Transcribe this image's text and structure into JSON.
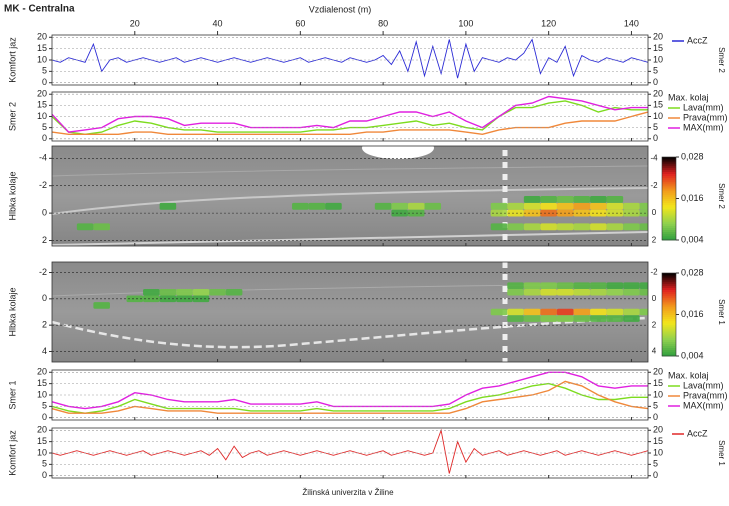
{
  "footer": "Žilinská univerzita v Žiline",
  "chart_data": [
    {
      "type": "line",
      "title": "MK - Centralna",
      "xlabel": "Vzdialenost (m)",
      "xlim": [
        0,
        144
      ],
      "xticks": [
        20,
        40,
        60,
        80,
        100,
        120,
        140
      ],
      "ylabel": "Komfort jaz",
      "side_label": "Smer 2",
      "ylim": [
        -1,
        21
      ],
      "yticks": [
        0,
        5,
        10,
        15,
        20
      ],
      "grid": true,
      "x": [
        0,
        2,
        4,
        6,
        8,
        10,
        12,
        14,
        16,
        18,
        20,
        22,
        24,
        26,
        28,
        30,
        32,
        34,
        36,
        38,
        40,
        42,
        44,
        46,
        48,
        50,
        52,
        54,
        56,
        58,
        60,
        62,
        64,
        66,
        68,
        70,
        72,
        74,
        76,
        78,
        80,
        82,
        84,
        86,
        88,
        90,
        92,
        94,
        96,
        98,
        100,
        102,
        104,
        106,
        108,
        110,
        112,
        114,
        116,
        118,
        120,
        122,
        124,
        126,
        128,
        130,
        132,
        134,
        136,
        138,
        140,
        142,
        144
      ],
      "series": [
        {
          "name": "AccZ",
          "color": "#2b2bd6",
          "values": [
            10,
            9,
            11,
            10,
            9,
            17,
            5,
            10,
            11,
            9,
            10,
            11,
            10,
            9,
            10,
            11,
            9,
            10,
            11,
            10,
            9,
            10,
            11,
            10,
            9,
            10,
            11,
            10,
            9,
            10,
            11,
            9,
            10,
            11,
            10,
            9,
            11,
            10,
            9,
            10,
            12,
            8,
            14,
            5,
            18,
            3,
            16,
            4,
            19,
            2,
            17,
            5,
            11,
            10,
            9,
            11,
            10,
            13,
            19,
            4,
            11,
            9,
            16,
            3,
            12,
            10,
            9,
            11,
            10,
            9,
            11,
            10,
            9
          ]
        }
      ]
    },
    {
      "type": "line",
      "ylabel": "Smer 2",
      "legend_title": "Max. kolaj",
      "ylim": [
        -1,
        21
      ],
      "yticks": [
        0,
        5,
        10,
        15,
        20
      ],
      "grid": true,
      "x": [
        0,
        4,
        8,
        12,
        16,
        20,
        24,
        28,
        32,
        36,
        40,
        44,
        48,
        52,
        56,
        60,
        64,
        68,
        72,
        76,
        80,
        84,
        88,
        92,
        96,
        100,
        104,
        108,
        112,
        116,
        120,
        124,
        128,
        132,
        136,
        140,
        144
      ],
      "series": [
        {
          "name": "Lava(mm)",
          "color": "#7ddc1f",
          "values": [
            10,
            3,
            2,
            3,
            6,
            8,
            7,
            5,
            4,
            4,
            3,
            3,
            3,
            3,
            3,
            3,
            4,
            4,
            5,
            5,
            6,
            7,
            8,
            6,
            7,
            5,
            4,
            10,
            14,
            14,
            16,
            17,
            15,
            12,
            14,
            13,
            13
          ]
        },
        {
          "name": "Prava(mm)",
          "color": "#f0883a",
          "values": [
            3,
            2,
            2,
            2,
            2,
            3,
            3,
            2,
            2,
            2,
            2,
            2,
            2,
            2,
            2,
            2,
            2,
            2,
            2,
            3,
            3,
            4,
            4,
            4,
            4,
            3,
            2,
            4,
            5,
            5,
            5,
            7,
            8,
            8,
            8,
            10,
            12
          ]
        },
        {
          "name": "MAX(mm)",
          "color": "#e020e0",
          "values": [
            11,
            3,
            4,
            5,
            9,
            10,
            10,
            9,
            6,
            7,
            7,
            7,
            5,
            5,
            5,
            5,
            6,
            5,
            8,
            8,
            10,
            12,
            12,
            10,
            12,
            8,
            5,
            10,
            15,
            16,
            19,
            18,
            17,
            15,
            13,
            14,
            14
          ]
        }
      ]
    },
    {
      "type": "heatmap",
      "ylabel": "Hlbka kolaje",
      "side_label": "Smer 2",
      "ylim": [
        -4.9,
        2.4
      ],
      "y_inverted": true,
      "yticks": [
        -4,
        -2,
        0,
        2
      ],
      "grid": true,
      "clim": [
        0.004,
        0.028
      ],
      "cticks": [
        {
          "value": 0.004,
          "label": "0,004"
        },
        {
          "value": 0.016,
          "label": "0,016"
        },
        {
          "value": 0.028,
          "label": "0,028"
        }
      ],
      "colormap": [
        "#2e9e3e",
        "#8fd14f",
        "#f2e61c",
        "#f29a1c",
        "#e02020",
        "#000000"
      ],
      "x": [
        8,
        12,
        28,
        60,
        64,
        68,
        80,
        84,
        88,
        92,
        84,
        88,
        108,
        112,
        116,
        120,
        124,
        128,
        132,
        136,
        140,
        144,
        108,
        112,
        116,
        120,
        124,
        128,
        132,
        136,
        140,
        144,
        108,
        112,
        116,
        120,
        124,
        128,
        132,
        136,
        140,
        144,
        116,
        120,
        124,
        128,
        132,
        136
      ],
      "y": [
        1,
        1,
        -0.5,
        -0.5,
        -0.5,
        -0.5,
        -0.5,
        -0.5,
        -0.5,
        -0.5,
        0,
        0,
        -0.5,
        -0.5,
        -0.5,
        -0.5,
        -0.5,
        -0.5,
        -0.5,
        -0.5,
        -0.5,
        -0.5,
        0,
        0,
        0,
        0,
        0,
        0,
        0,
        0,
        0,
        0,
        1,
        1,
        1,
        1,
        1,
        1,
        1,
        1,
        1,
        1,
        -1,
        -1,
        -1,
        -1,
        -1,
        -1
      ],
      "values": [
        0.006,
        0.007,
        0.005,
        0.006,
        0.006,
        0.005,
        0.006,
        0.008,
        0.01,
        0.007,
        0.005,
        0.006,
        0.008,
        0.01,
        0.012,
        0.014,
        0.016,
        0.018,
        0.016,
        0.012,
        0.01,
        0.008,
        0.01,
        0.013,
        0.016,
        0.02,
        0.018,
        0.016,
        0.014,
        0.012,
        0.01,
        0.008,
        0.006,
        0.008,
        0.01,
        0.012,
        0.011,
        0.01,
        0.012,
        0.01,
        0.008,
        0.007,
        0.005,
        0.006,
        0.007,
        0.006,
        0.005,
        0.006
      ]
    },
    {
      "type": "heatmap",
      "ylabel": "Hlbka kolaje",
      "side_label": "Smer 1",
      "ylim": [
        -2.8,
        4.8
      ],
      "y_inverted": true,
      "yticks": [
        -2,
        0,
        2,
        4
      ],
      "grid": true,
      "clim": [
        0.004,
        0.028
      ],
      "cticks": [
        {
          "value": 0.004,
          "label": "0,004"
        },
        {
          "value": 0.016,
          "label": "0,016"
        },
        {
          "value": 0.028,
          "label": "0,028"
        }
      ],
      "colormap": [
        "#2e9e3e",
        "#8fd14f",
        "#f2e61c",
        "#f29a1c",
        "#e02020",
        "#000000"
      ],
      "x": [
        12,
        24,
        28,
        32,
        36,
        40,
        44,
        20,
        24,
        28,
        32,
        36,
        112,
        116,
        120,
        124,
        128,
        132,
        136,
        140,
        144,
        112,
        116,
        120,
        124,
        128,
        132,
        136,
        140,
        144,
        108,
        112,
        116,
        120,
        124,
        128,
        132,
        136,
        140,
        144,
        112,
        116,
        120,
        124,
        128,
        132,
        136,
        140
      ],
      "y": [
        0.5,
        -0.5,
        -0.5,
        -0.5,
        -0.5,
        -0.5,
        -0.5,
        0,
        0,
        0,
        0,
        0,
        -1,
        -1,
        -1,
        -1,
        -1,
        -1,
        -1,
        -1,
        -1,
        -0.5,
        -0.5,
        -0.5,
        -0.5,
        -0.5,
        -0.5,
        -0.5,
        -0.5,
        -0.5,
        1,
        1,
        1,
        1,
        1,
        1,
        1,
        1,
        1,
        1,
        1.5,
        1.5,
        1.5,
        1.5,
        1.5,
        1.5,
        1.5,
        1.5
      ],
      "values": [
        0.006,
        0.005,
        0.007,
        0.008,
        0.009,
        0.007,
        0.006,
        0.006,
        0.006,
        0.005,
        0.005,
        0.005,
        0.006,
        0.008,
        0.008,
        0.007,
        0.006,
        0.006,
        0.005,
        0.005,
        0.005,
        0.008,
        0.01,
        0.012,
        0.012,
        0.011,
        0.01,
        0.009,
        0.008,
        0.007,
        0.008,
        0.012,
        0.016,
        0.02,
        0.022,
        0.018,
        0.014,
        0.012,
        0.01,
        0.008,
        0.006,
        0.007,
        0.008,
        0.008,
        0.007,
        0.006,
        0.006,
        0.005
      ]
    },
    {
      "type": "line",
      "ylabel": "Smer 1",
      "legend_title": "Max. kolaj",
      "ylim": [
        -1,
        21
      ],
      "yticks": [
        0,
        5,
        10,
        15,
        20
      ],
      "grid": true,
      "x": [
        0,
        4,
        8,
        12,
        16,
        20,
        24,
        28,
        32,
        36,
        40,
        44,
        48,
        52,
        56,
        60,
        64,
        68,
        72,
        76,
        80,
        84,
        88,
        92,
        96,
        100,
        104,
        108,
        112,
        116,
        120,
        124,
        128,
        132,
        136,
        140,
        144
      ],
      "series": [
        {
          "name": "Lava(mm)",
          "color": "#7ddc1f",
          "values": [
            5,
            3,
            2,
            3,
            5,
            8,
            6,
            4,
            4,
            4,
            4,
            4,
            3,
            3,
            3,
            3,
            4,
            3,
            3,
            3,
            3,
            3,
            3,
            3,
            4,
            7,
            9,
            10,
            12,
            14,
            15,
            13,
            10,
            8,
            8,
            9,
            9
          ]
        },
        {
          "name": "Prava(mm)",
          "color": "#f0883a",
          "values": [
            4,
            2,
            2,
            2,
            3,
            5,
            4,
            3,
            3,
            3,
            2,
            2,
            2,
            2,
            2,
            2,
            2,
            2,
            2,
            2,
            2,
            2,
            2,
            2,
            2,
            4,
            7,
            8,
            9,
            10,
            12,
            16,
            14,
            10,
            7,
            5,
            4
          ]
        },
        {
          "name": "MAX(mm)",
          "color": "#e020e0",
          "values": [
            7,
            5,
            4,
            5,
            7,
            11,
            10,
            8,
            7,
            7,
            7,
            8,
            6,
            6,
            6,
            6,
            7,
            5,
            5,
            5,
            5,
            5,
            5,
            5,
            6,
            10,
            13,
            14,
            16,
            18,
            20,
            20,
            18,
            14,
            13,
            14,
            14
          ]
        }
      ]
    },
    {
      "type": "line",
      "ylabel": "Komfort jaz",
      "side_label": "Smer 1",
      "ylim": [
        -1,
        21
      ],
      "yticks": [
        0,
        5,
        10,
        15,
        20
      ],
      "grid": true,
      "x": [
        0,
        2,
        4,
        6,
        8,
        10,
        12,
        14,
        16,
        18,
        20,
        22,
        24,
        26,
        28,
        30,
        32,
        34,
        36,
        38,
        40,
        42,
        44,
        46,
        48,
        50,
        52,
        54,
        56,
        58,
        60,
        62,
        64,
        66,
        68,
        70,
        72,
        74,
        76,
        78,
        80,
        82,
        84,
        86,
        88,
        90,
        92,
        94,
        96,
        98,
        100,
        102,
        104,
        106,
        108,
        110,
        112,
        114,
        116,
        118,
        120,
        122,
        124,
        126,
        128,
        130,
        132,
        134,
        136,
        138,
        140,
        142,
        144
      ],
      "series": [
        {
          "name": "AccZ",
          "color": "#e02828",
          "values": [
            10,
            9,
            10,
            11,
            10,
            9,
            10,
            11,
            10,
            9,
            10,
            11,
            9,
            10,
            11,
            10,
            9,
            10,
            11,
            9,
            12,
            7,
            13,
            8,
            10,
            11,
            9,
            10,
            11,
            10,
            9,
            10,
            11,
            10,
            9,
            10,
            11,
            10,
            9,
            10,
            11,
            9,
            10,
            11,
            10,
            9,
            10,
            20,
            1,
            15,
            6,
            12,
            9,
            10,
            11,
            9,
            10,
            11,
            10,
            9,
            10,
            11,
            9,
            10,
            11,
            10,
            9,
            10,
            11,
            10,
            9,
            10,
            11
          ]
        }
      ]
    }
  ]
}
